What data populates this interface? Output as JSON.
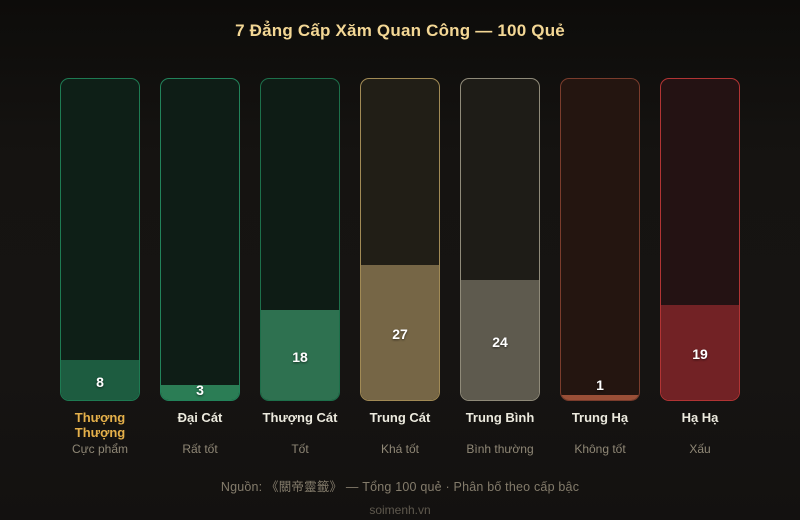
{
  "title": "7 Đẳng Cấp Xăm Quan Công — 100 Quẻ",
  "title_color": "#f3d795",
  "chart_data": {
    "type": "bar",
    "title": "7 Đẳng Cấp Xăm Quan Công — 100 Quẻ",
    "total": 100,
    "ylim": [
      0,
      64
    ],
    "grid": false,
    "legend": false,
    "categories": [
      "Thượng Thượng",
      "Đại Cát",
      "Thượng Cát",
      "Trung Cát",
      "Trung Bình",
      "Trung Hạ",
      "Hạ Hạ"
    ],
    "category_subtitles": [
      "Cực phẩm",
      "Rất tốt",
      "Tốt",
      "Khá tốt",
      "Bình thường",
      "Không tốt",
      "Xấu"
    ],
    "values": [
      8,
      3,
      18,
      27,
      24,
      1,
      19
    ],
    "bars": [
      {
        "label": "Thượng Thượng",
        "sub": "Cực phẩm",
        "value": 8,
        "border": "#1e7a52",
        "fill": "#1d5c40",
        "bg": "#0e1f17",
        "label_color": "#e5b04a"
      },
      {
        "label": "Đại Cát",
        "sub": "Rất tốt",
        "value": 3,
        "border": "#22825a",
        "fill": "#2b7d55",
        "bg": "#0e1d16",
        "label_color": "#eceade"
      },
      {
        "label": "Thượng Cát",
        "sub": "Tốt",
        "value": 18,
        "border": "#1d6f4a",
        "fill": "#2e7150",
        "bg": "#0e1c15",
        "label_color": "#eceade"
      },
      {
        "label": "Trung Cát",
        "sub": "Khá tốt",
        "value": 27,
        "border": "#a18a55",
        "fill": "#766646",
        "bg": "#211e16",
        "label_color": "#eceade"
      },
      {
        "label": "Trung Bình",
        "sub": "Bình thường",
        "value": 24,
        "border": "#8f8a79",
        "fill": "#5e5a4e",
        "bg": "#1e1c17",
        "label_color": "#eceade"
      },
      {
        "label": "Trung Hạ",
        "sub": "Không tốt",
        "value": 1,
        "border": "#7a3c2c",
        "fill": "#9a4f37",
        "bg": "#241510",
        "label_color": "#eceade"
      },
      {
        "label": "Hạ Hạ",
        "sub": "Xấu",
        "value": 19,
        "border": "#b13434",
        "fill": "#722225",
        "bg": "#241213",
        "label_color": "#eceade"
      }
    ]
  },
  "footer": {
    "source_line": "Nguồn: 《關帝靈籤》 — Tổng 100 quẻ · Phân bố theo cấp bậc",
    "site": "soimenh.vn"
  }
}
